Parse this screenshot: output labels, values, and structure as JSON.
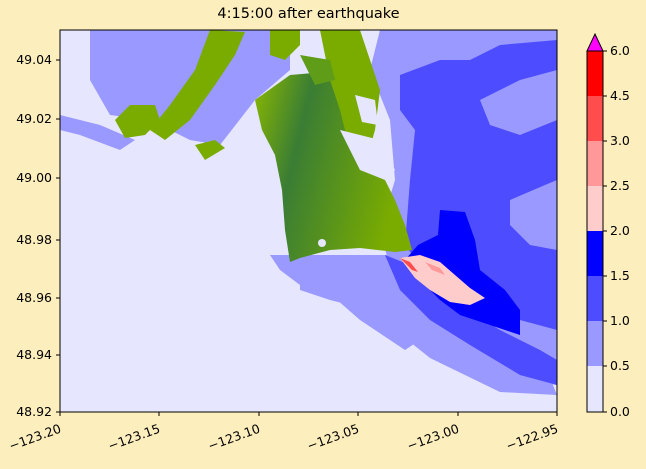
{
  "title": "4:15:00 after earthquake",
  "map": {
    "x_ticks": [
      "−123.20",
      "−123.15",
      "−123.10",
      "−123.05",
      "−123.00",
      "−122.95"
    ],
    "y_ticks": [
      "48.92",
      "48.94",
      "48.96",
      "48.98",
      "49.00",
      "49.02",
      "49.04"
    ],
    "xlim": [
      -123.2,
      -122.95
    ],
    "ylim": [
      48.92,
      49.05
    ]
  },
  "colorbar": {
    "labels": [
      "0.0",
      "0.5",
      "1.0",
      "1.5",
      "2.0",
      "2.5",
      "3.0",
      "4.5",
      "6.0"
    ],
    "colors": [
      "#e6e6ff",
      "#9999ff",
      "#4d4dff",
      "#0000ff",
      "#ffcccc",
      "#ff9999",
      "#ff4d4d",
      "#ff0000"
    ],
    "extend_color": "#ff00ff"
  },
  "colors": {
    "background": "#fdeebd",
    "water_low": "#e6e6ff",
    "land_green_light": "#7aac00",
    "land_green_dark": "#3a7d34"
  }
}
